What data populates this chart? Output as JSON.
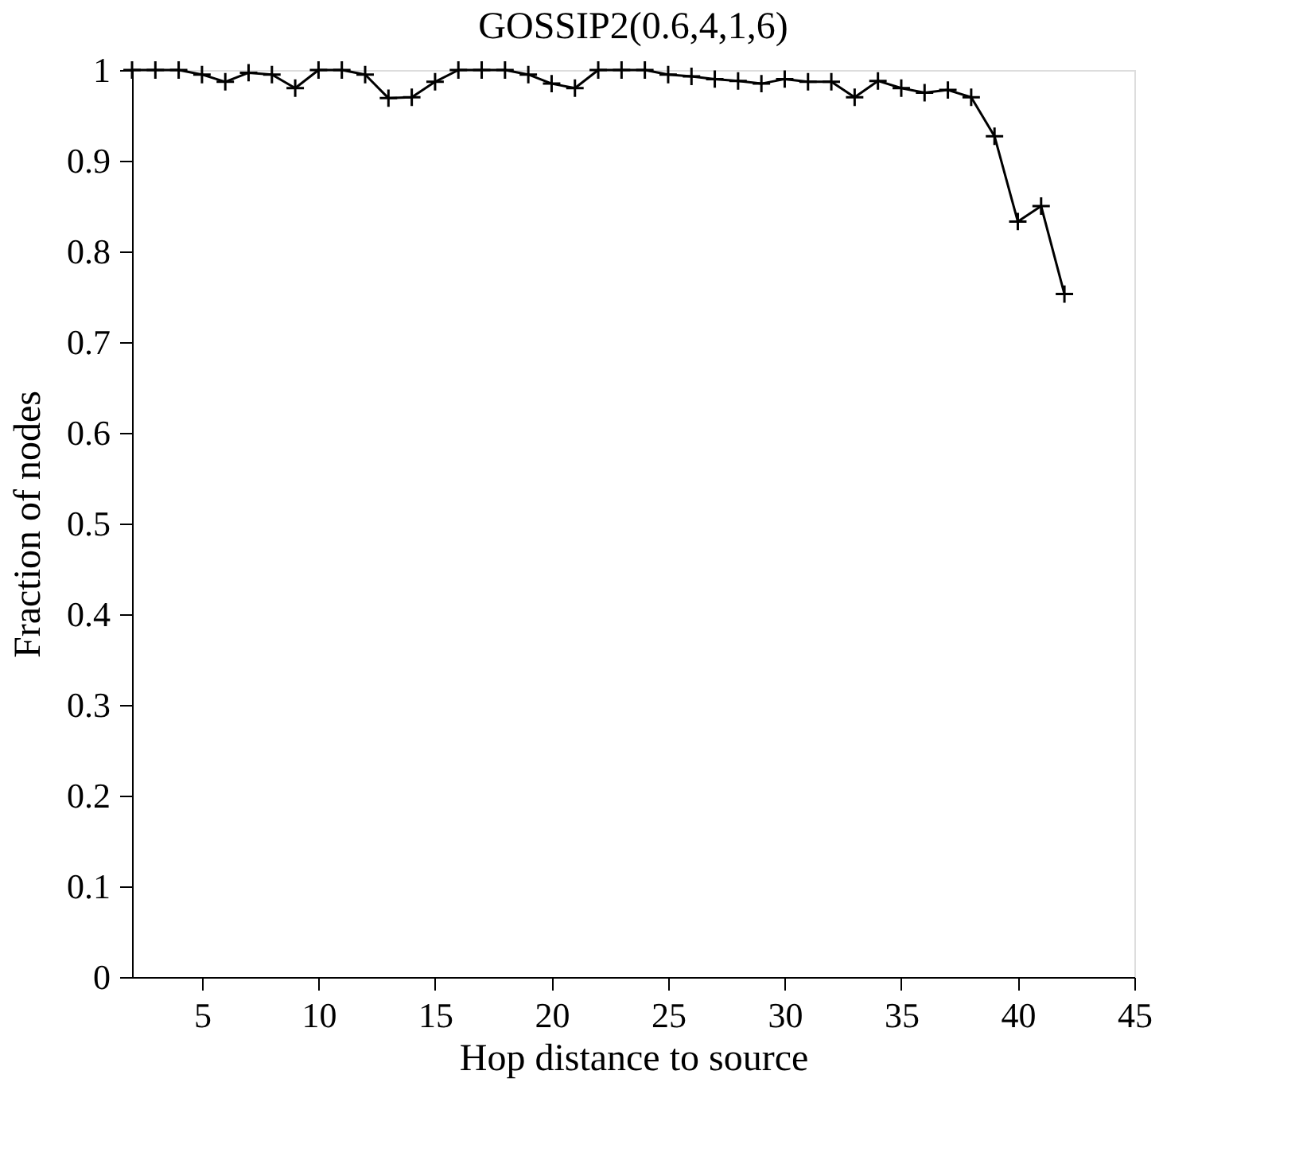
{
  "chart_data": {
    "type": "line",
    "title": "GOSSIP2(0.6,4,1,6)",
    "xlabel": "Hop distance to source",
    "ylabel": "Fraction of nodes",
    "x": [
      2,
      3,
      4,
      5,
      6,
      7,
      8,
      9,
      10,
      11,
      12,
      13,
      14,
      15,
      16,
      17,
      18,
      19,
      20,
      21,
      22,
      23,
      24,
      25,
      26,
      27,
      28,
      29,
      30,
      31,
      32,
      33,
      34,
      35,
      36,
      37,
      38,
      39,
      40,
      41,
      42
    ],
    "series": [
      {
        "color": "#000000",
        "values": [
          1.0,
          1.0,
          1.0,
          0.995,
          0.987,
          0.997,
          0.995,
          0.98,
          1.0,
          1.0,
          0.995,
          0.969,
          0.97,
          0.987,
          1.0,
          1.0,
          1.0,
          0.995,
          0.985,
          0.98,
          1.0,
          1.0,
          1.0,
          0.995,
          0.993,
          0.99,
          0.988,
          0.985,
          0.99,
          0.987,
          0.987,
          0.97,
          0.988,
          0.98,
          0.975,
          0.978,
          0.97,
          0.927,
          0.833,
          0.85,
          0.753
        ]
      }
    ],
    "xlim": [
      2,
      45
    ],
    "xticks": [
      5,
      10,
      15,
      20,
      25,
      30,
      35,
      40,
      45
    ],
    "ylim": [
      0,
      1
    ],
    "yticks": [
      0,
      0.1,
      0.2,
      0.3,
      0.4,
      0.5,
      0.6,
      0.7,
      0.8,
      0.9,
      1
    ],
    "grid": false,
    "legend": false,
    "marker": "cross",
    "line_style": "solid"
  }
}
